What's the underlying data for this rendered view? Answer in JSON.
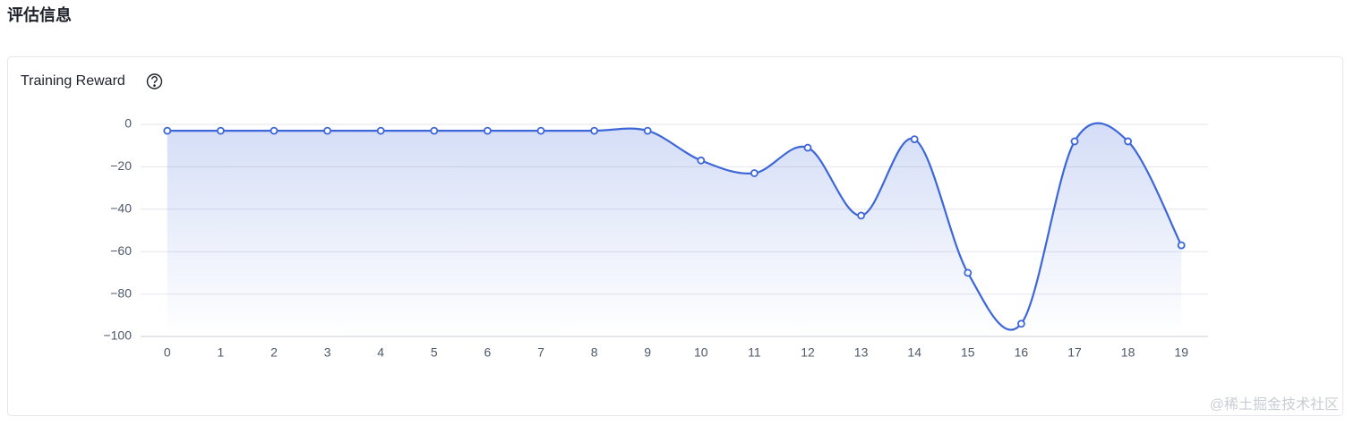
{
  "page_title": "评估信息",
  "watermark": "@稀土掘金技术社区",
  "chart_data": {
    "type": "line",
    "title": "Training Reward",
    "categories": [
      "0",
      "1",
      "2",
      "3",
      "4",
      "5",
      "6",
      "7",
      "8",
      "9",
      "10",
      "11",
      "12",
      "13",
      "14",
      "15",
      "16",
      "17",
      "18",
      "19"
    ],
    "values": [
      -3,
      -3,
      -3,
      -3,
      -3,
      -3,
      -3,
      -3,
      -3,
      -3,
      -17,
      -23,
      -11,
      -43,
      -7,
      -70,
      -94,
      -8,
      -8,
      -57
    ],
    "color": "#3d67d9",
    "smooth": true,
    "area": true,
    "ylim": [
      -100,
      0
    ],
    "yticks": [
      0,
      {
        "value": -20,
        "label": "−20"
      },
      {
        "value": -40,
        "label": "−40"
      },
      {
        "value": -60,
        "label": "−60"
      },
      {
        "value": -80,
        "label": "−80"
      },
      {
        "value": -100,
        "label": "−100"
      }
    ],
    "grid": true
  }
}
